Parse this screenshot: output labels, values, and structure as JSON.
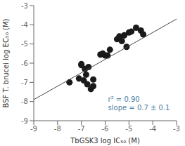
{
  "chart_data": {
    "type": "scatter",
    "x_label": "TbGSK3 log IC₅₀ (M)",
    "y_label": "BSF T. brucei log EC₅₀ (M)",
    "xlim": [
      -9,
      -3
    ],
    "ylim": [
      -9,
      -3
    ],
    "xticks": [
      -9,
      -8,
      -7,
      -6,
      -5,
      -4,
      -3
    ],
    "yticks": [
      -9,
      -8,
      -7,
      -6,
      -5,
      -4,
      -3
    ],
    "series": [
      {
        "type": "scatter",
        "color": "#1a1a1a",
        "x": [
          -7.5,
          -7.1,
          -7.0,
          -7.0,
          -6.9,
          -6.85,
          -6.8,
          -6.75,
          -6.7,
          -6.6,
          -6.5,
          -6.5,
          -6.2,
          -6.1,
          -6.0,
          -5.9,
          -5.8,
          -5.5,
          -5.4,
          -5.3,
          -5.2,
          -5.1,
          -5.0,
          -4.9,
          -4.7,
          -4.5,
          -4.4
        ],
        "values": [
          -7.0,
          -6.8,
          -6.1,
          -6.05,
          -6.9,
          -6.3,
          -6.6,
          -7.1,
          -6.2,
          -7.35,
          -6.85,
          -7.2,
          -5.55,
          -5.5,
          -5.6,
          -5.6,
          -5.3,
          -4.75,
          -4.6,
          -4.85,
          -4.55,
          -5.15,
          -4.4,
          -4.35,
          -4.15,
          -4.3,
          -4.5
        ]
      },
      {
        "type": "line",
        "color": "#444444",
        "x": [
          -9,
          -3
        ],
        "values": [
          -7.9,
          -3.7
        ]
      }
    ],
    "annotation": {
      "text": "r² = 0.90\nslope = 0.7 ± 0.1",
      "color": "#4a7fa5"
    }
  }
}
